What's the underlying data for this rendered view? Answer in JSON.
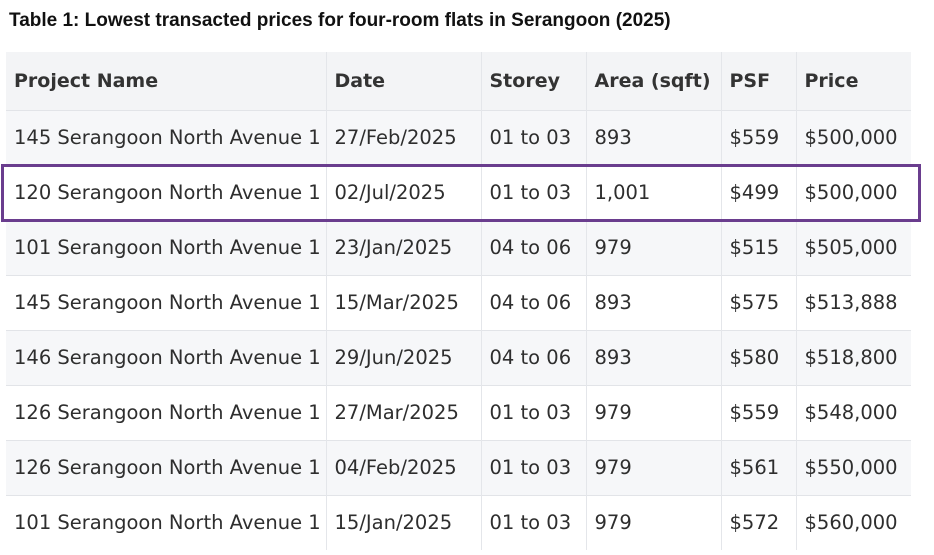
{
  "caption": "Table 1: Lowest transacted prices for four-room flats in Serangoon (2025)",
  "table": {
    "headers": [
      "Project Name",
      "Date",
      "Storey",
      "Area (sqft)",
      "PSF",
      "Price"
    ],
    "rows": [
      [
        "145 Serangoon North Avenue 1",
        "27/Feb/2025",
        "01 to 03",
        "893",
        "$559",
        "$500,000"
      ],
      [
        "120 Serangoon North Avenue 1",
        "02/Jul/2025",
        "01 to 03",
        "1,001",
        "$499",
        "$500,000"
      ],
      [
        "101 Serangoon North Avenue 1",
        "23/Jan/2025",
        "04 to 06",
        "979",
        "$515",
        "$505,000"
      ],
      [
        "145 Serangoon North Avenue 1",
        "15/Mar/2025",
        "04 to 06",
        "893",
        "$575",
        "$513,888"
      ],
      [
        "146 Serangoon North Avenue 1",
        "29/Jun/2025",
        "04 to 06",
        "893",
        "$580",
        "$518,800"
      ],
      [
        "126 Serangoon North Avenue 1",
        "27/Mar/2025",
        "01 to 03",
        "979",
        "$559",
        "$548,000"
      ],
      [
        "126 Serangoon North Avenue 1",
        "04/Feb/2025",
        "01 to 03",
        "979",
        "$561",
        "$550,000"
      ],
      [
        "101 Serangoon North Avenue 1",
        "15/Jan/2025",
        "01 to 03",
        "979",
        "$572",
        "$560,000"
      ]
    ],
    "highlighted_row": 1,
    "highlight_color": "#6a3d8e"
  }
}
